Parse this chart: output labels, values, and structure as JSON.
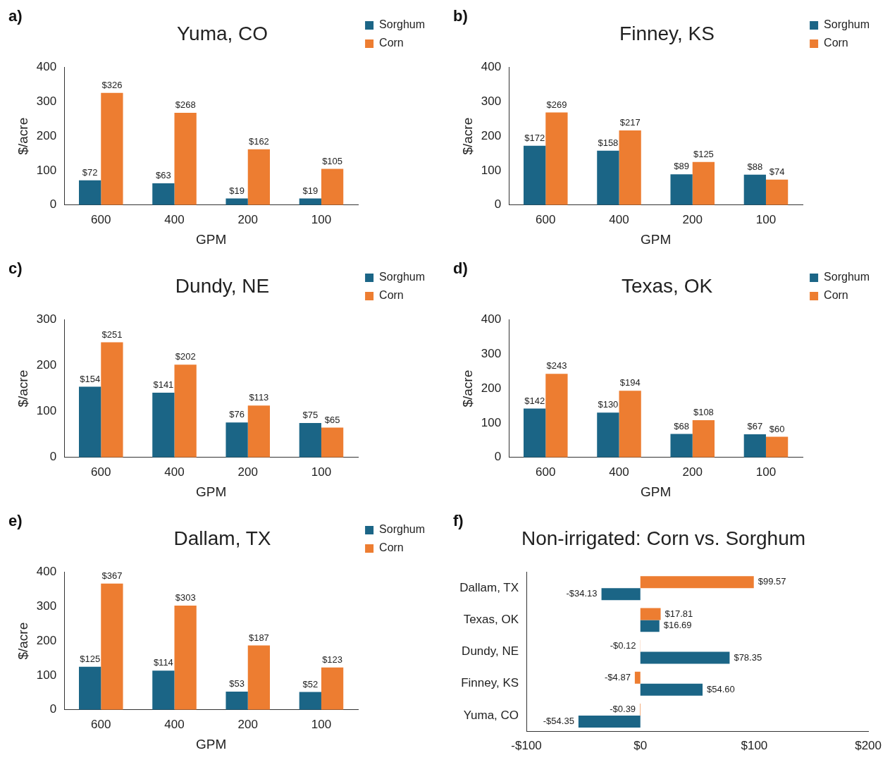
{
  "chart_data": [
    {
      "type": "bar",
      "title": "Yuma, CO",
      "xlabel": "GPM",
      "ylabel": "$/acre",
      "annotations": [
        "a)"
      ],
      "categories": [
        "600",
        "400",
        "200",
        "100"
      ],
      "ylim": [
        0,
        400
      ],
      "yticks": [
        0,
        100,
        200,
        300,
        400
      ],
      "legend": "top right",
      "series": [
        {
          "name": "Sorghum",
          "color": "#1b6586",
          "values": [
            72,
            63,
            19,
            19
          ],
          "value_labels": [
            "$72",
            "$63",
            "$19",
            "$19"
          ]
        },
        {
          "name": "Corn",
          "color": "#ed7d31",
          "values": [
            326,
            268,
            162,
            105
          ],
          "value_labels": [
            "$326",
            "$268",
            "$162",
            "$105"
          ]
        }
      ]
    },
    {
      "type": "bar",
      "title": "Finney, KS",
      "xlabel": "GPM",
      "ylabel": "$/acre",
      "annotations": [
        "b)"
      ],
      "categories": [
        "600",
        "400",
        "200",
        "100"
      ],
      "ylim": [
        0,
        400
      ],
      "yticks": [
        0,
        100,
        200,
        300,
        400
      ],
      "legend": "top right",
      "series": [
        {
          "name": "Sorghum",
          "color": "#1b6586",
          "values": [
            172,
            158,
            89,
            88
          ],
          "value_labels": [
            "$172",
            "$158",
            "$89",
            "$88"
          ]
        },
        {
          "name": "Corn",
          "color": "#ed7d31",
          "values": [
            269,
            217,
            125,
            74
          ],
          "value_labels": [
            "$269",
            "$217",
            "$125",
            "$74"
          ]
        }
      ]
    },
    {
      "type": "bar",
      "title": "Dundy, NE",
      "xlabel": "GPM",
      "ylabel": "$/acre",
      "annotations": [
        "c)"
      ],
      "categories": [
        "600",
        "400",
        "200",
        "100"
      ],
      "ylim": [
        0,
        300
      ],
      "yticks": [
        0,
        100,
        200,
        300
      ],
      "legend": "top right",
      "series": [
        {
          "name": "Sorghum",
          "color": "#1b6586",
          "values": [
            154,
            141,
            76,
            75
          ],
          "value_labels": [
            "$154",
            "$141",
            "$76",
            "$75"
          ]
        },
        {
          "name": "Corn",
          "color": "#ed7d31",
          "values": [
            251,
            202,
            113,
            65
          ],
          "value_labels": [
            "$251",
            "$202",
            "$113",
            "$65"
          ]
        }
      ]
    },
    {
      "type": "bar",
      "title": "Texas, OK",
      "xlabel": "GPM",
      "ylabel": "$/acre",
      "annotations": [
        "d)"
      ],
      "categories": [
        "600",
        "400",
        "200",
        "100"
      ],
      "ylim": [
        0,
        400
      ],
      "yticks": [
        0,
        100,
        200,
        300,
        400
      ],
      "legend": "top right",
      "series": [
        {
          "name": "Sorghum",
          "color": "#1b6586",
          "values": [
            142,
            130,
            68,
            67
          ],
          "value_labels": [
            "$142",
            "$130",
            "$68",
            "$67"
          ]
        },
        {
          "name": "Corn",
          "color": "#ed7d31",
          "values": [
            243,
            194,
            108,
            60
          ],
          "value_labels": [
            "$243",
            "$194",
            "$108",
            "$60"
          ]
        }
      ]
    },
    {
      "type": "bar",
      "title": "Dallam, TX",
      "xlabel": "GPM",
      "ylabel": "$/acre",
      "annotations": [
        "e)"
      ],
      "categories": [
        "600",
        "400",
        "200",
        "100"
      ],
      "ylim": [
        0,
        400
      ],
      "yticks": [
        0,
        100,
        200,
        300,
        400
      ],
      "legend": "top right",
      "series": [
        {
          "name": "Sorghum",
          "color": "#1b6586",
          "values": [
            125,
            114,
            53,
            52
          ],
          "value_labels": [
            "$125",
            "$114",
            "$53",
            "$52"
          ]
        },
        {
          "name": "Corn",
          "color": "#ed7d31",
          "values": [
            367,
            303,
            187,
            123
          ],
          "value_labels": [
            "$367",
            "$303",
            "$187",
            "$123"
          ]
        }
      ]
    },
    {
      "type": "bar",
      "orientation": "horizontal",
      "title": "Non-irrigated: Corn vs. Sorghum",
      "annotations": [
        "f)"
      ],
      "categories": [
        "Dallam, TX",
        "Texas, OK",
        "Dundy, NE",
        "Finney, KS",
        "Yuma, CO"
      ],
      "xlim": [
        -100,
        200
      ],
      "xticks": [
        {
          "value": -100,
          "label": "-$100"
        },
        {
          "value": 0,
          "label": "$0"
        },
        {
          "value": 100,
          "label": "$100"
        },
        {
          "value": 200,
          "label": "$200"
        }
      ],
      "legend": false,
      "series": [
        {
          "color": "#ed7d31",
          "values": [
            99.57,
            17.81,
            -0.12,
            -4.87,
            -0.39
          ],
          "value_labels": [
            "$99.57",
            "$17.81",
            "-$0.12",
            "-$4.87",
            "-$0.39"
          ]
        },
        {
          "color": "#1b6586",
          "values": [
            -34.13,
            16.69,
            78.35,
            54.6,
            -54.35
          ],
          "value_labels": [
            "-$34.13",
            "$16.69",
            "$78.35",
            "$54.60",
            "-$54.35"
          ]
        }
      ]
    }
  ]
}
